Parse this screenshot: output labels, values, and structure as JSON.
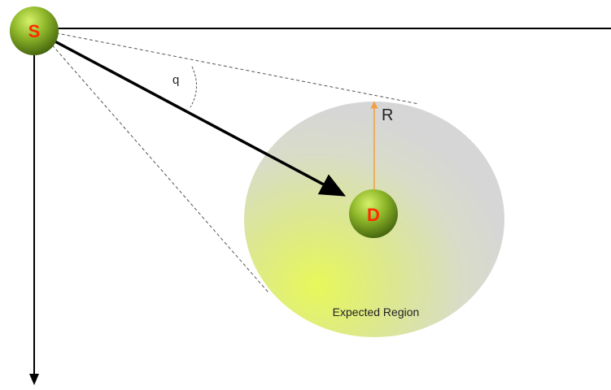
{
  "diagram": {
    "source_node": {
      "label": "S"
    },
    "destination_node": {
      "label": "D"
    },
    "angle_label": "q",
    "radius_label": "R",
    "region_label": "Expected Region",
    "colors": {
      "node_text": "#ff2a00",
      "region_bright": "#e3f55a",
      "region_gray": "#dcdcdc",
      "radius_line": "#f0a040",
      "axis": "#000000"
    }
  }
}
